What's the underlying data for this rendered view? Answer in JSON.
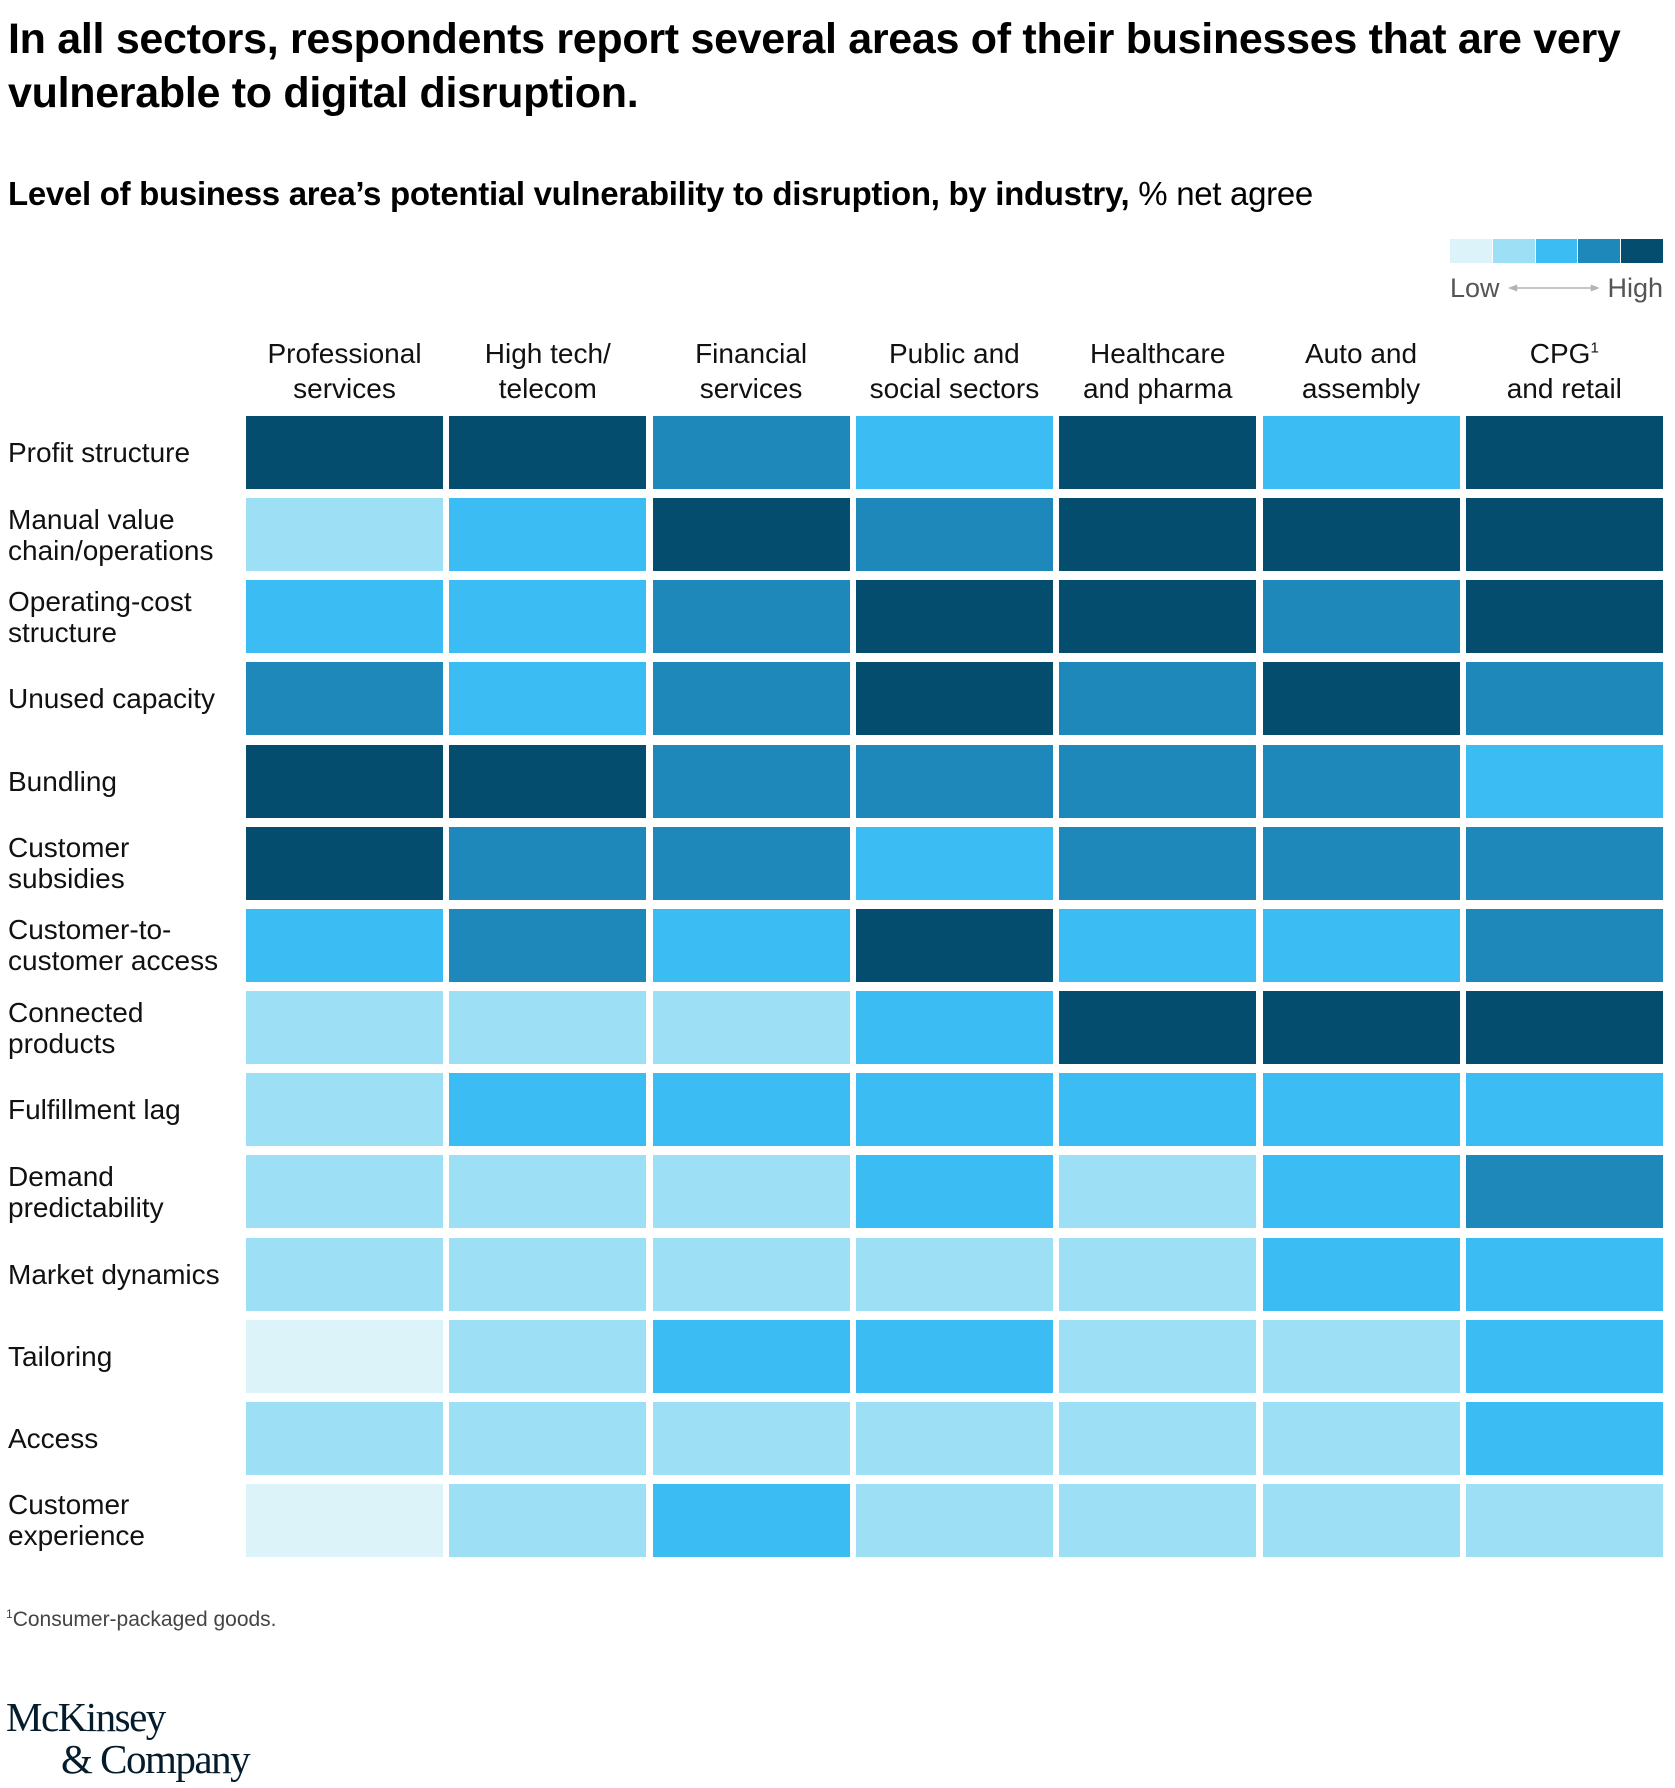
{
  "header": {
    "title": "In all sectors, respondents report several areas of their businesses that are very vulnerable to digital disruption.",
    "subtitle_bold": "Level of business area’s potential vulnerability to disruption, by industry,",
    "subtitle_unit": " % net agree"
  },
  "legend": {
    "low_label": "Low",
    "high_label": "High",
    "colors": [
      "#dcf3f9",
      "#9ddff5",
      "#3bbdf3",
      "#1d88b9",
      "#054d6f"
    ],
    "arrow_color": "#b3b3b3"
  },
  "columns": [
    {
      "line1": "Professional",
      "line2": "services",
      "sup": ""
    },
    {
      "line1": "High tech/",
      "line2": "telecom",
      "sup": ""
    },
    {
      "line1": "Financial",
      "line2": "services",
      "sup": ""
    },
    {
      "line1": "Public and",
      "line2": "social sectors",
      "sup": ""
    },
    {
      "line1": "Healthcare",
      "line2": "and pharma",
      "sup": ""
    },
    {
      "line1": "Auto and",
      "line2": "assembly",
      "sup": ""
    },
    {
      "line1": "CPG",
      "line2": "and retail",
      "sup": "1"
    }
  ],
  "chart_data": {
    "type": "heatmap",
    "title": "Level of business area’s potential vulnerability to disruption, by industry",
    "unit": "% net agree",
    "scale": {
      "levels": 5,
      "min_label": "Low",
      "max_label": "High"
    },
    "legend_position": "top-right",
    "x_categories": [
      "Professional services",
      "High tech/telecom",
      "Financial services",
      "Public and social sectors",
      "Healthcare and pharma",
      "Auto and assembly",
      "CPG and retail"
    ],
    "y_categories": [
      "Profit structure",
      "Manual value chain/operations",
      "Operating-cost structure",
      "Unused capacity",
      "Bundling",
      "Customer subsidies",
      "Customer-to-customer access",
      "Connected products",
      "Fulfillment lag",
      "Demand predictability",
      "Market dynamics",
      "Tailoring",
      "Access",
      "Customer experience"
    ],
    "values": [
      [
        5,
        5,
        4,
        3,
        5,
        3,
        5
      ],
      [
        2,
        3,
        5,
        4,
        5,
        5,
        5
      ],
      [
        3,
        3,
        4,
        5,
        5,
        4,
        5
      ],
      [
        4,
        3,
        4,
        5,
        4,
        5,
        4
      ],
      [
        5,
        5,
        4,
        4,
        4,
        4,
        3
      ],
      [
        5,
        4,
        4,
        3,
        4,
        4,
        4
      ],
      [
        3,
        4,
        3,
        5,
        3,
        3,
        4
      ],
      [
        2,
        2,
        2,
        3,
        5,
        5,
        5
      ],
      [
        2,
        3,
        3,
        3,
        3,
        3,
        3
      ],
      [
        2,
        2,
        2,
        3,
        2,
        3,
        4
      ],
      [
        2,
        2,
        2,
        2,
        2,
        3,
        3
      ],
      [
        1,
        2,
        3,
        3,
        2,
        2,
        3
      ],
      [
        2,
        2,
        2,
        2,
        2,
        2,
        3
      ],
      [
        1,
        2,
        3,
        2,
        2,
        2,
        2
      ]
    ]
  },
  "rows": [
    {
      "line1": "Profit structure",
      "line2": ""
    },
    {
      "line1": "Manual value",
      "line2": "chain/operations"
    },
    {
      "line1": "Operating-cost",
      "line2": "structure"
    },
    {
      "line1": "Unused capacity",
      "line2": ""
    },
    {
      "line1": "Bundling",
      "line2": ""
    },
    {
      "line1": "Customer",
      "line2": "subsidies"
    },
    {
      "line1": "Customer-to-",
      "line2": "customer access"
    },
    {
      "line1": "Connected",
      "line2": "products"
    },
    {
      "line1": "Fulfillment lag",
      "line2": ""
    },
    {
      "line1": "Demand",
      "line2": "predictability"
    },
    {
      "line1": "Market dynamics",
      "line2": ""
    },
    {
      "line1": "Tailoring",
      "line2": ""
    },
    {
      "line1": "Access",
      "line2": ""
    },
    {
      "line1": "Customer",
      "line2": "experience"
    }
  ],
  "footnote": {
    "marker": "1",
    "text": "Consumer-packaged goods."
  },
  "logo": {
    "line1": "McKinsey",
    "line2": "& Company"
  }
}
